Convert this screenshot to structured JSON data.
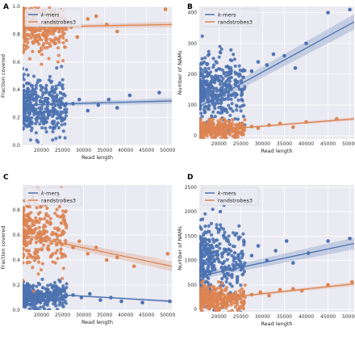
{
  "colors": {
    "kmers": "#4c72b0",
    "randstrobes": "#dd8452",
    "panel_bg": "#eaeaf2",
    "grid": "#ffffff"
  },
  "chart_data": [
    {
      "panel": "A",
      "type": "scatter",
      "xlabel": "Read length",
      "ylabel": "Fraction covered",
      "xlim": [
        15500,
        51000
      ],
      "ylim": [
        0,
        1.0
      ],
      "xticks": [
        20000,
        25000,
        30000,
        35000,
        40000,
        45000,
        50000
      ],
      "yticks": [
        0.0,
        0.2,
        0.4,
        0.6,
        0.8,
        1.0
      ],
      "ytick_labels": [
        "0.0",
        "0.2",
        "0.4",
        "0.6",
        "0.8",
        "1.0"
      ],
      "legend": "top-left",
      "series": [
        {
          "name": "k-mers",
          "key": "kmers",
          "cluster": {
            "x_range": [
              15500,
              26000
            ],
            "y_center": 0.28,
            "y_spread": 0.1,
            "n": 380
          },
          "sparse": [
            [
              27500,
              0.3
            ],
            [
              29000,
              0.33
            ],
            [
              31000,
              0.25
            ],
            [
              33500,
              0.29
            ],
            [
              36000,
              0.33
            ],
            [
              38000,
              0.27
            ],
            [
              41000,
              0.36
            ],
            [
              48000,
              0.38
            ]
          ],
          "fit": [
            [
              15500,
              0.29
            ],
            [
              51000,
              0.32
            ]
          ],
          "band": 0.02
        },
        {
          "name": "randstrobes3",
          "key": "randstrobes",
          "cluster": {
            "x_range": [
              15500,
              26000
            ],
            "y_center": 0.84,
            "y_spread": 0.09,
            "n": 300
          },
          "sparse": [
            [
              27000,
              0.85
            ],
            [
              28500,
              0.78
            ],
            [
              31000,
              0.91
            ],
            [
              33000,
              0.93
            ],
            [
              35500,
              0.87
            ],
            [
              38000,
              0.82
            ],
            [
              49500,
              0.98
            ]
          ],
          "fit": [
            [
              15500,
              0.85
            ],
            [
              51000,
              0.87
            ]
          ],
          "band": 0.02
        }
      ]
    },
    {
      "panel": "B",
      "type": "scatter",
      "xlabel": "Read length",
      "ylabel": "Number of NAMs",
      "xlim": [
        15500,
        51000
      ],
      "ylim": [
        -10,
        420
      ],
      "xticks": [
        20000,
        25000,
        30000,
        35000,
        40000,
        45000,
        50000
      ],
      "yticks": [
        0,
        100,
        200,
        300,
        400
      ],
      "ytick_labels": [
        "0",
        "100",
        "200",
        "300",
        "400"
      ],
      "legend": "top-left",
      "series": [
        {
          "name": "k-mers",
          "key": "kmers",
          "cluster": {
            "x_range": [
              15500,
              26000
            ],
            "y_center": 150,
            "y_spread": 55,
            "n": 380
          },
          "sparse": [
            [
              27500,
              210
            ],
            [
              29000,
              240
            ],
            [
              31000,
              230
            ],
            [
              32500,
              265
            ],
            [
              35000,
              260
            ],
            [
              37500,
              220
            ],
            [
              40000,
              300
            ],
            [
              45000,
              400
            ],
            [
              50000,
              410
            ]
          ],
          "fit": [
            [
              15500,
              95
            ],
            [
              51000,
              370
            ]
          ],
          "band": 25
        },
        {
          "name": "randstrobes3",
          "key": "randstrobes",
          "cluster": {
            "x_range": [
              15500,
              26000
            ],
            "y_center": 20,
            "y_spread": 15,
            "n": 300
          },
          "sparse": [
            [
              27500,
              30
            ],
            [
              29000,
              25
            ],
            [
              31500,
              35
            ],
            [
              34000,
              40
            ],
            [
              37000,
              28
            ],
            [
              40000,
              45
            ],
            [
              47000,
              55
            ]
          ],
          "fit": [
            [
              15500,
              15
            ],
            [
              51000,
              55
            ]
          ],
          "band": 5
        }
      ]
    },
    {
      "panel": "C",
      "type": "scatter",
      "xlabel": "Read length",
      "ylabel": "Fraction covered",
      "xlim": [
        15500,
        51000
      ],
      "ylim": [
        0,
        1.0
      ],
      "xticks": [
        20000,
        25000,
        30000,
        35000,
        40000,
        45000,
        50000
      ],
      "yticks": [
        0.0,
        0.2,
        0.4,
        0.6,
        0.8
      ],
      "ytick_labels": [
        "0.0",
        "0.2",
        "0.4",
        "0.6",
        "0.8"
      ],
      "legend": "top-left",
      "series": [
        {
          "name": "k-mers",
          "key": "kmers",
          "cluster": {
            "x_range": [
              15500,
              26000
            ],
            "y_center": 0.11,
            "y_spread": 0.05,
            "n": 380
          },
          "sparse": [
            [
              27500,
              0.12
            ],
            [
              29500,
              0.1
            ],
            [
              31500,
              0.13
            ],
            [
              34000,
              0.08
            ],
            [
              36500,
              0.1
            ],
            [
              39000,
              0.07
            ],
            [
              44000,
              0.06
            ],
            [
              50500,
              0.07
            ]
          ],
          "fit": [
            [
              15500,
              0.14
            ],
            [
              51000,
              0.07
            ]
          ],
          "band": 0.01
        },
        {
          "name": "randstrobes3",
          "key": "randstrobes",
          "cluster": {
            "x_range": [
              15500,
              26000
            ],
            "y_center": 0.6,
            "y_spread": 0.15,
            "n": 300
          },
          "sparse": [
            [
              27500,
              0.5
            ],
            [
              29000,
              0.55
            ],
            [
              31000,
              0.45
            ],
            [
              33000,
              0.5
            ],
            [
              35500,
              0.4
            ],
            [
              38000,
              0.42
            ],
            [
              42000,
              0.35
            ],
            [
              50000,
              0.45
            ]
          ],
          "fit": [
            [
              15500,
              0.6
            ],
            [
              51000,
              0.35
            ]
          ],
          "band": 0.04
        }
      ]
    },
    {
      "panel": "D",
      "type": "scatter",
      "xlabel": "Read length",
      "ylabel": "Number of NAMs",
      "xlim": [
        15500,
        51000
      ],
      "ylim": [
        -50,
        2550
      ],
      "xticks": [
        20000,
        25000,
        30000,
        35000,
        40000,
        45000,
        50000
      ],
      "yticks": [
        0,
        500,
        1000,
        1500,
        2000,
        2500
      ],
      "ytick_labels": [
        "0",
        "500",
        "1000",
        "1500",
        "2000",
        "2500"
      ],
      "legend": "top-left",
      "series": [
        {
          "name": "k-mers",
          "key": "kmers",
          "cluster": {
            "x_range": [
              15500,
              26000
            ],
            "y_center": 1000,
            "y_spread": 400,
            "n": 380
          },
          "sparse": [
            [
              27500,
              1100
            ],
            [
              29000,
              1300
            ],
            [
              31000,
              1000
            ],
            [
              33000,
              1200
            ],
            [
              35500,
              1400
            ],
            [
              37000,
              950
            ],
            [
              40500,
              1150
            ],
            [
              45000,
              1400
            ],
            [
              50000,
              1450
            ]
          ],
          "fit": [
            [
              15500,
              680
            ],
            [
              51000,
              1350
            ]
          ],
          "band": 120
        },
        {
          "name": "randstrobes3",
          "key": "randstrobes",
          "cluster": {
            "x_range": [
              15500,
              26000
            ],
            "y_center": 220,
            "y_spread": 130,
            "n": 300
          },
          "sparse": [
            [
              27500,
              300
            ],
            [
              29500,
              350
            ],
            [
              31500,
              280
            ],
            [
              34000,
              400
            ],
            [
              37000,
              420
            ],
            [
              39000,
              380
            ],
            [
              45000,
              500
            ],
            [
              50500,
              560
            ]
          ],
          "fit": [
            [
              15500,
              180
            ],
            [
              51000,
              520
            ]
          ],
          "band": 40
        }
      ]
    }
  ]
}
